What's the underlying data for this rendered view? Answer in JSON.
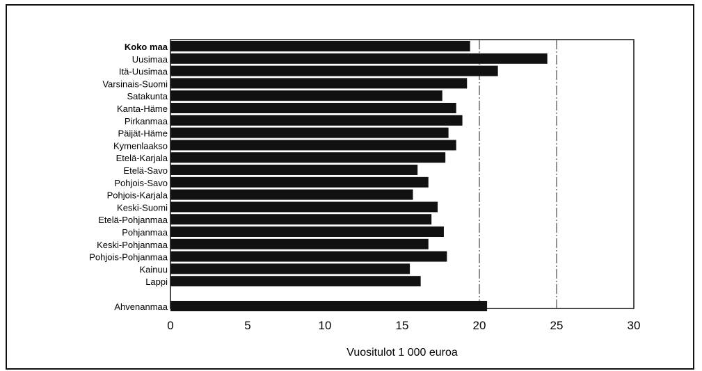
{
  "chart_data": {
    "type": "bar",
    "orientation": "horizontal",
    "categories": [
      "Koko maa",
      "Uusimaa",
      "Itä-Uusimaa",
      "Varsinais-Suomi",
      "Satakunta",
      "Kanta-Häme",
      "Pirkanmaa",
      "Päijät-Häme",
      "Kymenlaakso",
      "Etelä-Karjala",
      "Etelä-Savo",
      "Pohjois-Savo",
      "Pohjois-Karjala",
      "Keski-Suomi",
      "Etelä-Pohjanmaa",
      "Pohjanmaa",
      "Keski-Pohjanmaa",
      "Pohjois-Pohjanmaa",
      "Kainuu",
      "Lappi",
      "Ahvenanmaa"
    ],
    "values": [
      19.4,
      24.4,
      21.2,
      19.2,
      17.6,
      18.5,
      18.9,
      18.0,
      18.5,
      17.8,
      16.0,
      16.7,
      15.7,
      17.3,
      16.9,
      17.7,
      16.7,
      17.9,
      15.5,
      16.2,
      20.5
    ],
    "bold_category": "Koko maa",
    "gap_before_index": 20,
    "xlabel": "Vuositulot 1 000 euroa",
    "xlim": [
      0,
      30
    ],
    "xticks": [
      0,
      5,
      10,
      15,
      20,
      25,
      30
    ],
    "grid_lines": [
      20,
      25
    ],
    "bar_color": "#111111"
  }
}
